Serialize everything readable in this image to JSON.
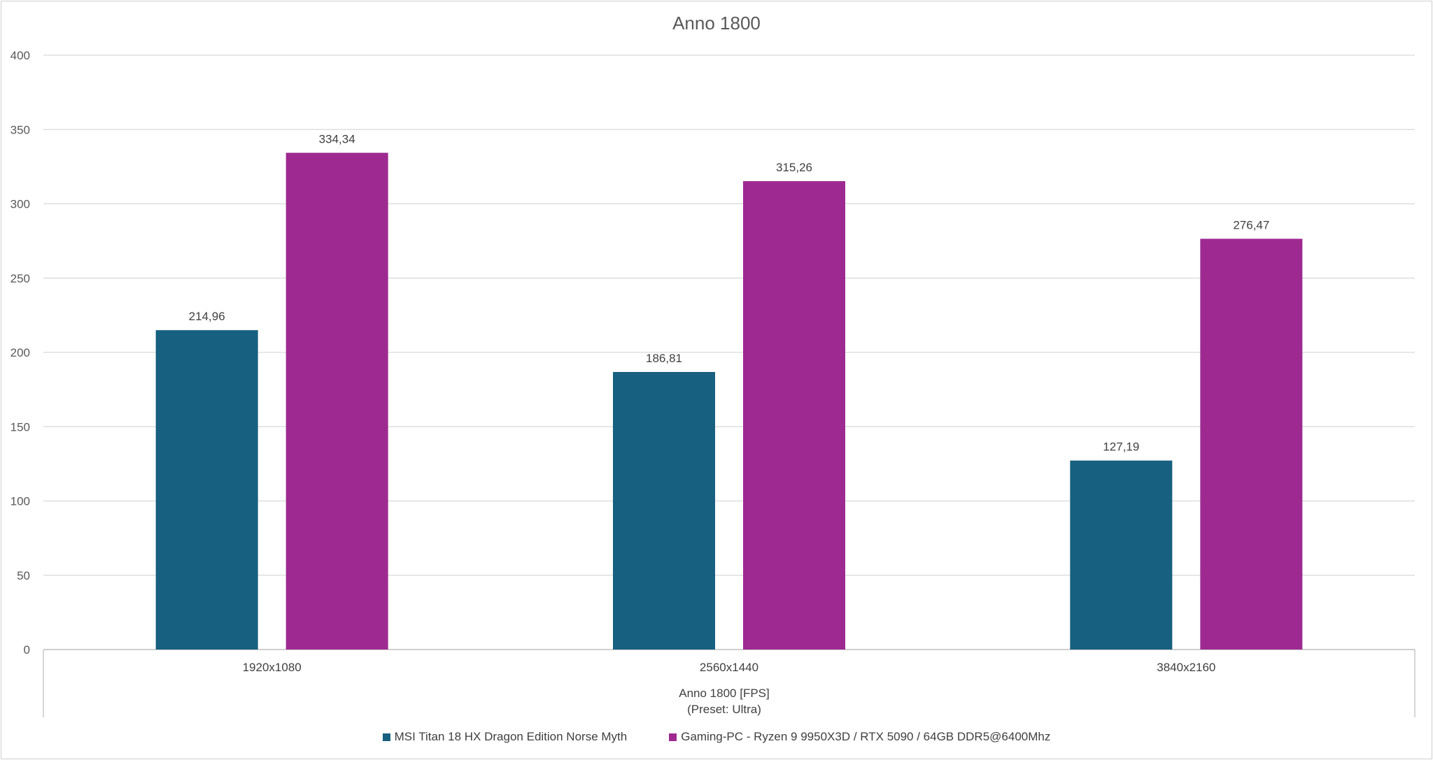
{
  "chart_data": {
    "type": "bar",
    "title": "Anno 1800",
    "xlabel": "Anno 1800 [FPS]",
    "xlabel_sub": "(Preset: Ultra)",
    "ylabel": "",
    "ylim": [
      0,
      400
    ],
    "yticks": [
      0,
      50,
      100,
      150,
      200,
      250,
      300,
      350,
      400
    ],
    "categories": [
      "1920x1080",
      "2560x1440",
      "3840x2160"
    ],
    "series": [
      {
        "name": "MSI Titan 18 HX Dragon Edition Norse Myth",
        "color": "#17607f",
        "values": [
          214.96,
          186.81,
          127.19
        ],
        "labels": [
          "214,96",
          "186,81",
          "127,19"
        ]
      },
      {
        "name": "Gaming-PC - Ryzen 9 9950X3D / RTX 5090 / 64GB DDR5@6400Mhz",
        "color": "#9e2a91",
        "values": [
          334.34,
          315.26,
          276.47
        ],
        "labels": [
          "334,34",
          "315,26",
          "276,47"
        ]
      }
    ],
    "grid": true,
    "legend_position": "bottom"
  }
}
